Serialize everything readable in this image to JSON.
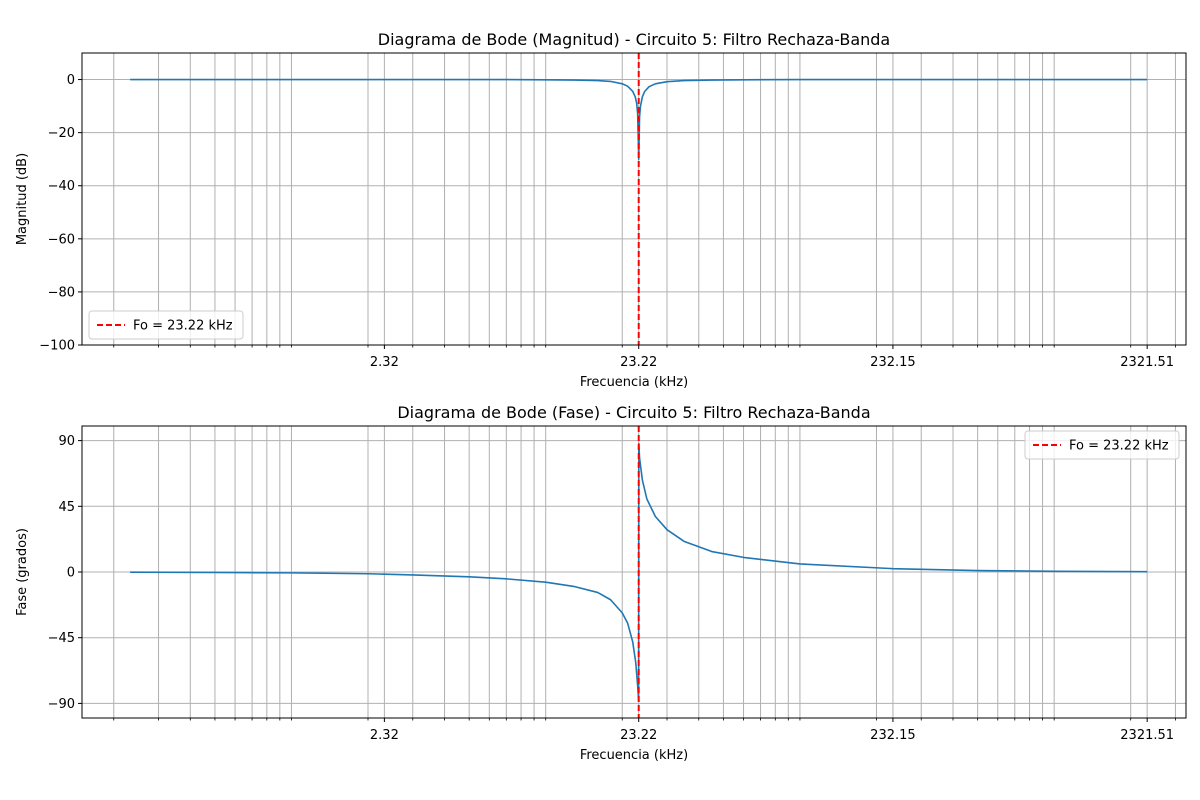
{
  "figure": {
    "line_color": "#1f77b4",
    "marker_color": "#ff0000",
    "grid_color": "#b0b0b0"
  },
  "chart_data": [
    {
      "type": "line",
      "title": "Diagrama de Bode (Magnitud) - Circuito 5: Filtro Rechaza-Banda",
      "xlabel": "Frecuencia (kHz)",
      "ylabel": "Magnitud (dB)",
      "xscale": "log",
      "xlim": [
        0.15,
        3300
      ],
      "ylim": [
        -100,
        10
      ],
      "xticks": [
        2.32,
        23.22,
        232.15,
        2321.51
      ],
      "xtick_labels": [
        "2.32",
        "23.22",
        "232.15",
        "2321.51"
      ],
      "yticks": [
        0,
        -20,
        -40,
        -60,
        -80,
        -100
      ],
      "ytick_labels": [
        "0",
        "−20",
        "−40",
        "−60",
        "−80",
        "−100"
      ],
      "grid": true,
      "legend_placement": "lower-left",
      "legend": [
        "Fo = 23.22 kHz"
      ],
      "vline": {
        "x": 23.22,
        "label": "Fo = 23.22 kHz"
      },
      "series": [
        {
          "x": [
            0.232,
            0.5,
            1,
            2,
            3,
            5,
            7,
            10,
            13,
            16,
            18,
            20,
            21,
            22,
            22.5,
            22.8,
            23.0,
            23.22,
            23.4,
            23.6,
            24,
            24.5,
            25.5,
            27,
            30,
            35,
            45,
            60,
            100,
            200,
            500,
            1000,
            2321.5
          ],
          "values": [
            0,
            0,
            0,
            0,
            0,
            0,
            0,
            -0.1,
            -0.2,
            -0.4,
            -0.7,
            -1.6,
            -2.5,
            -4.5,
            -6.5,
            -9,
            -13,
            -30,
            -14,
            -10,
            -6.5,
            -4.5,
            -2.7,
            -1.6,
            -0.8,
            -0.4,
            -0.2,
            -0.1,
            0,
            0,
            0,
            0,
            0
          ]
        }
      ]
    },
    {
      "type": "line",
      "title": "Diagrama de Bode (Fase) - Circuito 5: Filtro Rechaza-Banda",
      "xlabel": "Frecuencia (kHz)",
      "ylabel": "Fase (grados)",
      "xscale": "log",
      "xlim": [
        0.15,
        3300
      ],
      "ylim": [
        -100,
        100
      ],
      "xticks": [
        2.32,
        23.22,
        232.15,
        2321.51
      ],
      "xtick_labels": [
        "2.32",
        "23.22",
        "232.15",
        "2321.51"
      ],
      "yticks": [
        90,
        45,
        0,
        -45,
        -90
      ],
      "ytick_labels": [
        "90",
        "45",
        "0",
        "−45",
        "−90"
      ],
      "grid": true,
      "legend_placement": "upper-right",
      "legend": [
        "Fo = 23.22 kHz"
      ],
      "vline": {
        "x": 23.22,
        "label": "Fo = 23.22 kHz"
      },
      "series": [
        {
          "x": [
            0.232,
            0.5,
            1,
            2,
            2.32,
            3,
            5,
            7,
            10,
            13,
            16,
            18,
            20,
            21,
            22,
            22.6,
            23.0,
            23.2,
            23.24,
            23.4,
            24,
            25,
            27,
            30,
            35,
            45,
            60,
            100,
            232,
            500,
            1000,
            2321.5
          ],
          "values": [
            -0.1,
            -0.3,
            -0.6,
            -1.2,
            -1.5,
            -2,
            -3.3,
            -4.7,
            -7,
            -10,
            -14,
            -19,
            -28,
            -35,
            -48,
            -62,
            -78,
            -88,
            88,
            78,
            63,
            50,
            38,
            29,
            21,
            14,
            10,
            5.5,
            2.3,
            1,
            0.5,
            0.2
          ]
        }
      ]
    }
  ]
}
